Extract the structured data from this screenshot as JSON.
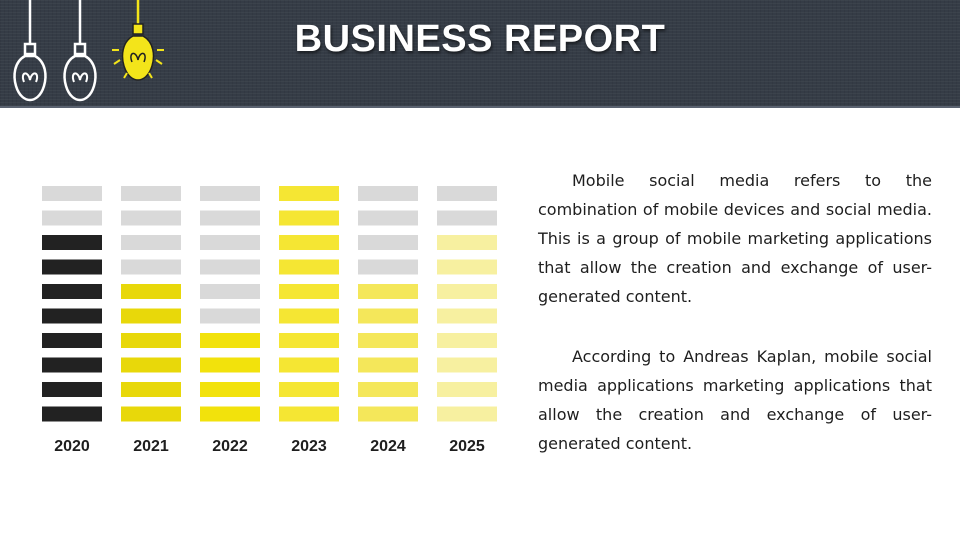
{
  "header": {
    "title": "BUSINESS REPORT"
  },
  "icons": [
    "lightbulb-outline-icon",
    "lightbulb-outline-icon",
    "lightbulb-lit-icon"
  ],
  "colors": {
    "header_bg": "#353c46",
    "filled_2020": "#222222",
    "filled_2021": "#e8d80a",
    "filled_2022": "#f2e20c",
    "filled_2023": "#f5e633",
    "filled_2024": "#f4e75a",
    "filled_2025": "#f7f0a0",
    "empty": "#d9d9d9",
    "bulb_lit": "#f3e41a"
  },
  "chart_data": {
    "type": "bar",
    "categories": [
      "2020",
      "2021",
      "2022",
      "2023",
      "2024",
      "2025"
    ],
    "values": [
      8,
      6,
      4,
      10,
      6,
      8
    ],
    "segments_per_bar": 10,
    "ylim": [
      0,
      10
    ],
    "title": "",
    "xlabel": "",
    "ylabel": "",
    "grid": false
  },
  "body": {
    "paragraphs": [
      "Mobile social media refers to the combination of mobile devices and social media. This is a group of mobile marketing applications that allow the creation and exchange of user-generated content.",
      "According to Andreas Kaplan, mobile social media applications marketing applications that allow the creation and exchange of user-generated content."
    ]
  }
}
